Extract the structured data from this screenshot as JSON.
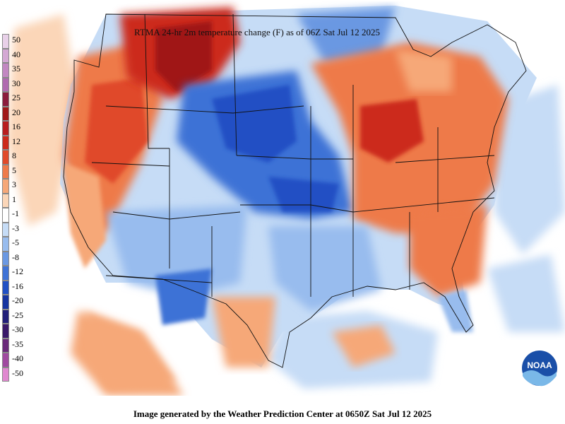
{
  "map": {
    "title": "RTMA 24-hr 2m temperature change (F) as of 06Z Sat Jul 12 2025",
    "footer": "Image generated by the Weather Prediction Center at 0650Z Sat Jul 12 2025",
    "logo_text": "NOAA",
    "legend": [
      {
        "label": "50",
        "color": "#e8d0e8"
      },
      {
        "label": "40",
        "color": "#d4a8d4"
      },
      {
        "label": "35",
        "color": "#c288c2"
      },
      {
        "label": "30",
        "color": "#b06ab0"
      },
      {
        "label": "25",
        "color": "#8b1c3c"
      },
      {
        "label": "20",
        "color": "#a01818"
      },
      {
        "label": "16",
        "color": "#b81e1e"
      },
      {
        "label": "12",
        "color": "#cc2a1a"
      },
      {
        "label": "8",
        "color": "#e04a2a"
      },
      {
        "label": "5",
        "color": "#ee7a4a"
      },
      {
        "label": "3",
        "color": "#f6a878"
      },
      {
        "label": "1",
        "color": "#fbd6b8"
      },
      {
        "label": "-1",
        "color": "#ffffff"
      },
      {
        "label": "-3",
        "color": "#c6dcf6"
      },
      {
        "label": "-5",
        "color": "#98bcee"
      },
      {
        "label": "-8",
        "color": "#6a98e2"
      },
      {
        "label": "-12",
        "color": "#3e72d6"
      },
      {
        "label": "-16",
        "color": "#2050c4"
      },
      {
        "label": "-20",
        "color": "#1634a0"
      },
      {
        "label": "-25",
        "color": "#22207a"
      },
      {
        "label": "-30",
        "color": "#3a1a6a"
      },
      {
        "label": "-35",
        "color": "#6a2a7a"
      },
      {
        "label": "-40",
        "color": "#a04aa0"
      },
      {
        "label": "-50",
        "color": "#e088d0"
      }
    ],
    "colors": {
      "warm": "#ee7a4a",
      "warm_light": "#f6a878",
      "hot": "#cc2a1a",
      "cool": "#98bcee",
      "cold": "#2050c4",
      "ocean_blue": "#c6dcf6",
      "border": "#111111"
    }
  }
}
